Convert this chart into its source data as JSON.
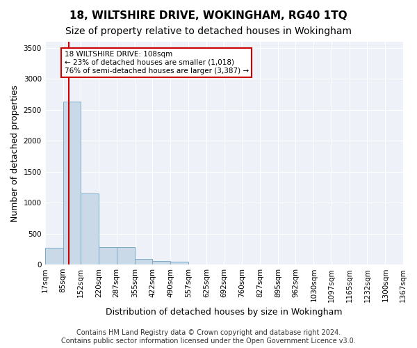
{
  "title": "18, WILTSHIRE DRIVE, WOKINGHAM, RG40 1TQ",
  "subtitle": "Size of property relative to detached houses in Wokingham",
  "xlabel": "Distribution of detached houses by size in Wokingham",
  "ylabel": "Number of detached properties",
  "bar_color": "#c9d9e8",
  "bar_edge_color": "#7aaac8",
  "background_color": "#eef2f8",
  "grid_color": "#ffffff",
  "annotation_text": "18 WILTSHIRE DRIVE: 108sqm\n← 23% of detached houses are smaller (1,018)\n76% of semi-detached houses are larger (3,387) →",
  "annotation_box_color": "#ffffff",
  "annotation_box_edge": "#cc0000",
  "vline_x": 108,
  "vline_color": "#cc0000",
  "bin_edges": [
    17,
    85,
    152,
    220,
    287,
    355,
    422,
    490,
    557,
    625,
    692,
    760,
    827,
    895,
    962,
    1030,
    1097,
    1165,
    1232,
    1300,
    1367
  ],
  "bin_labels": [
    "17sqm",
    "85sqm",
    "152sqm",
    "220sqm",
    "287sqm",
    "355sqm",
    "422sqm",
    "490sqm",
    "557sqm",
    "625sqm",
    "692sqm",
    "760sqm",
    "827sqm",
    "895sqm",
    "962sqm",
    "1030sqm",
    "1097sqm",
    "1165sqm",
    "1232sqm",
    "1300sqm",
    "1367sqm"
  ],
  "bar_heights": [
    270,
    2630,
    1150,
    285,
    285,
    95,
    55,
    40,
    0,
    0,
    0,
    0,
    0,
    0,
    0,
    0,
    0,
    0,
    0,
    0
  ],
  "ylim": [
    0,
    3600
  ],
  "yticks": [
    0,
    500,
    1000,
    1500,
    2000,
    2500,
    3000,
    3500
  ],
  "footer": "Contains HM Land Registry data © Crown copyright and database right 2024.\nContains public sector information licensed under the Open Government Licence v3.0.",
  "title_fontsize": 11,
  "subtitle_fontsize": 10,
  "ylabel_fontsize": 9,
  "xlabel_fontsize": 9,
  "tick_fontsize": 7.5,
  "footer_fontsize": 7
}
